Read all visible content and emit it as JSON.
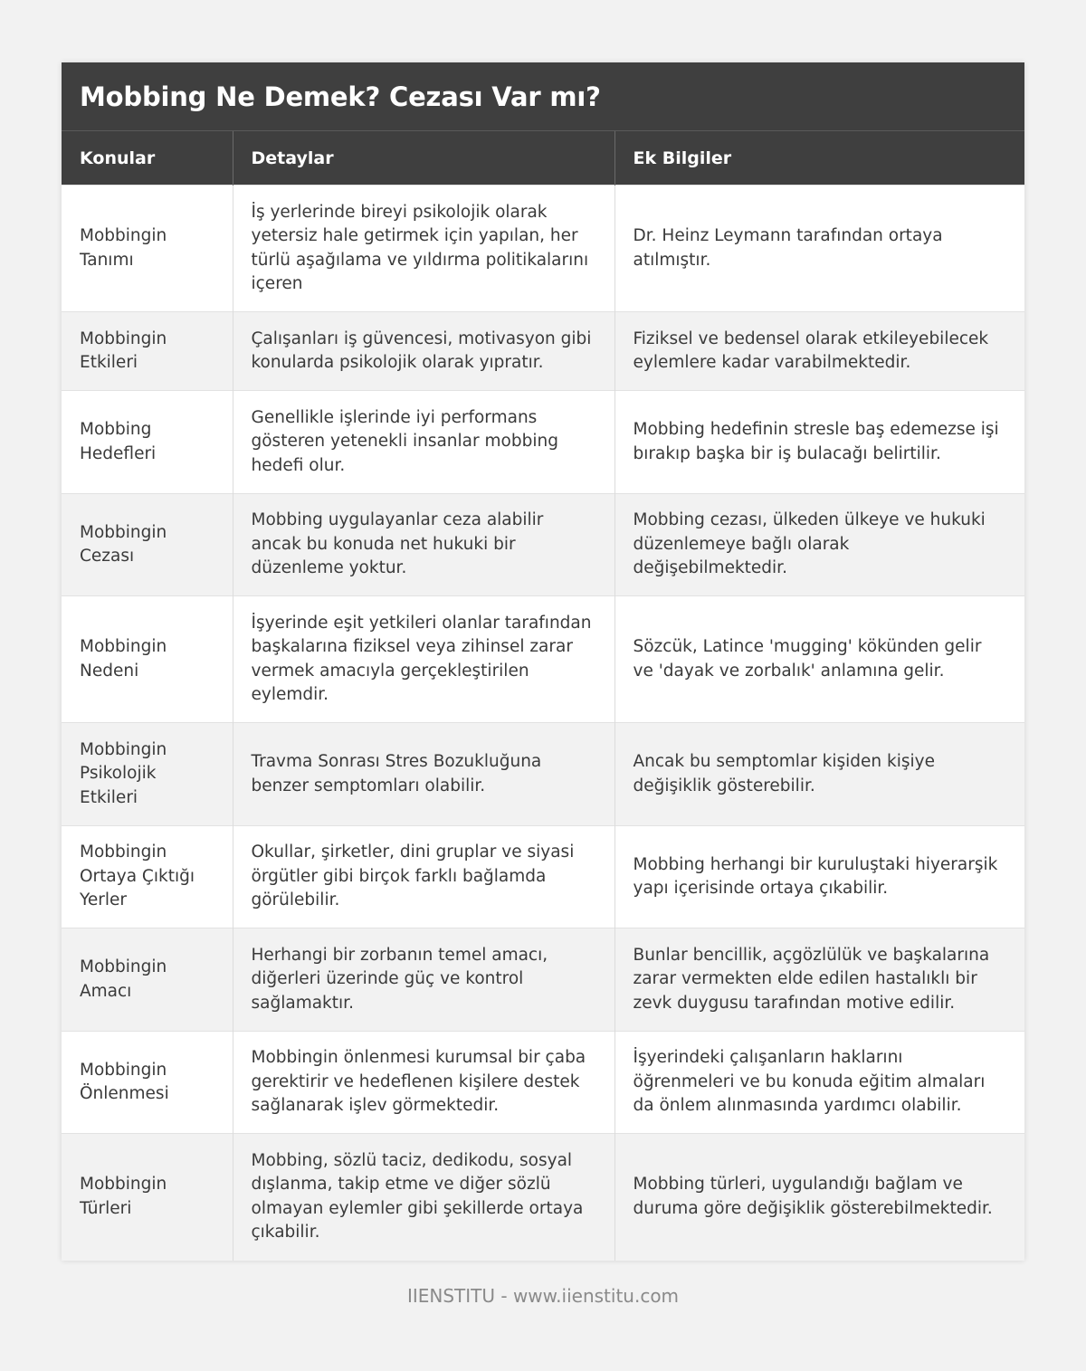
{
  "title": "Mobbing Ne Demek? Cezası Var mı?",
  "headers": [
    "Konular",
    "Detaylar",
    "Ek Bilgiler"
  ],
  "rows": [
    [
      "Mobbingin Tanımı",
      "İş yerlerinde bireyi psikolojik olarak yetersiz hale getirmek için yapılan, her türlü aşağılama ve yıldırma politikalarını içeren",
      "Dr. Heinz Leymann tarafından ortaya atılmıştır."
    ],
    [
      "Mobbingin Etkileri",
      "Çalışanları iş güvencesi, motivasyon gibi konularda psikolojik olarak yıpratır.",
      "Fiziksel ve bedensel olarak etkileyebilecek eylemlere kadar varabilmektedir."
    ],
    [
      "Mobbing Hedefleri",
      "Genellikle işlerinde iyi performans gösteren yetenekli insanlar mobbing hedefi olur.",
      "Mobbing hedefinin stresle baş edemezse işi bırakıp başka bir iş bulacağı belirtilir."
    ],
    [
      "Mobbingin Cezası",
      "Mobbing uygulayanlar ceza alabilir ancak bu konuda net hukuki bir düzenleme yoktur.",
      "Mobbing cezası, ülkeden ülkeye ve hukuki düzenlemeye bağlı olarak değişebilmektedir."
    ],
    [
      "Mobbingin Nedeni",
      "İşyerinde eşit yetkileri olanlar tarafından başkalarına fiziksel veya zihinsel zarar vermek amacıyla gerçekleştirilen eylemdir.",
      "Sözcük, Latince 'mugging' kökünden gelir ve 'dayak ve zorbalık' anlamına gelir."
    ],
    [
      "Mobbingin Psikolojik Etkileri",
      "Travma Sonrası Stres Bozukluğuna benzer semptomları olabilir.",
      "Ancak bu semptomlar kişiden kişiye değişiklik gösterebilir."
    ],
    [
      "Mobbingin Ortaya Çıktığı Yerler",
      "Okullar, şirketler, dini gruplar ve siyasi örgütler gibi birçok farklı bağlamda görülebilir.",
      "Mobbing herhangi bir kuruluştaki hiyerarşik yapı içerisinde ortaya çıkabilir."
    ],
    [
      "Mobbingin Amacı",
      "Herhangi bir zorbanın temel amacı, diğerleri üzerinde güç ve kontrol sağlamaktır.",
      "Bunlar bencillik, açgözlülük ve başkalarına zarar vermekten elde edilen hastalıklı bir zevk duygusu tarafından motive edilir."
    ],
    [
      "Mobbingin Önlenmesi",
      "Mobbingin önlenmesi kurumsal bir çaba gerektirir ve hedeflenen kişilere destek sağlanarak işlev görmektedir.",
      "İşyerindeki çalışanların haklarını öğrenmeleri ve bu konuda eğitim almaları da önlem alınmasında yardımcı olabilir."
    ],
    [
      "Mobbingin Türleri",
      "Mobbing, sözlü taciz, dedikodu, sosyal dışlanma, takip etme ve diğer sözlü olmayan eylemler gibi şekillerde ortaya çıkabilir.",
      "Mobbing türleri, uygulandığı bağlam ve duruma göre değişiklik gösterebilmektedir."
    ]
  ],
  "footer": "IIENSTITU - www.iienstitu.com",
  "colors": {
    "header_bg": "#3f3f3f",
    "row_alt_bg": "#f2f2f2",
    "text": "#3a3a3a"
  }
}
